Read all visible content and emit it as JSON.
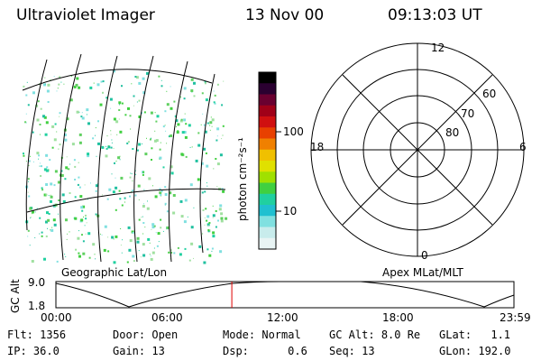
{
  "header": {
    "instrument": "Ultraviolet Imager",
    "date": "13 Nov 00",
    "time": "09:13:03 UT"
  },
  "colorbar": {
    "unit_label": "photon cm⁻²s⁻¹",
    "ticks": [
      "100",
      "10"
    ],
    "colors": [
      "#000000",
      "#2a0030",
      "#6a0030",
      "#a00018",
      "#d01010",
      "#e84000",
      "#f08000",
      "#f0c000",
      "#e0e000",
      "#a0e000",
      "#40d040",
      "#20d0a0",
      "#20c0d0",
      "#80e0e0",
      "#c8ecec",
      "#e8f4f4"
    ]
  },
  "polar_plot": {
    "lat_labels": [
      "80",
      "70",
      "60"
    ],
    "mlt_labels": {
      "top": "12",
      "bottom": "0",
      "left": "18",
      "right": "6"
    }
  },
  "panel_labels": {
    "left": "Geographic Lat/Lon",
    "right": "Apex MLat/MLT"
  },
  "altitude_plot": {
    "ylabel": "GC Alt",
    "yticks": [
      "9.0",
      "1.8"
    ],
    "xticks": [
      "00:00",
      "06:00",
      "12:00",
      "18:00",
      "23:59"
    ],
    "marker_time": "09:13",
    "marker_color": "#e00000"
  },
  "status": {
    "flt": {
      "label": "Flt:",
      "value": "1356"
    },
    "ip": {
      "label": "IP:",
      "value": "36.0"
    },
    "door": {
      "label": "Door:",
      "value": "Open"
    },
    "gain": {
      "label": "Gain:",
      "value": "13"
    },
    "mode": {
      "label": "Mode:",
      "value": "Normal"
    },
    "dsp": {
      "label": "Dsp:",
      "value": "0.6"
    },
    "gcalt": {
      "label": "GC Alt:",
      "value": "8.0 Re"
    },
    "seq": {
      "label": "Seq:",
      "value": "13"
    },
    "glat": {
      "label": "GLat:",
      "value": "1.1"
    },
    "glon": {
      "label": "GLon:",
      "value": "192.0"
    }
  }
}
